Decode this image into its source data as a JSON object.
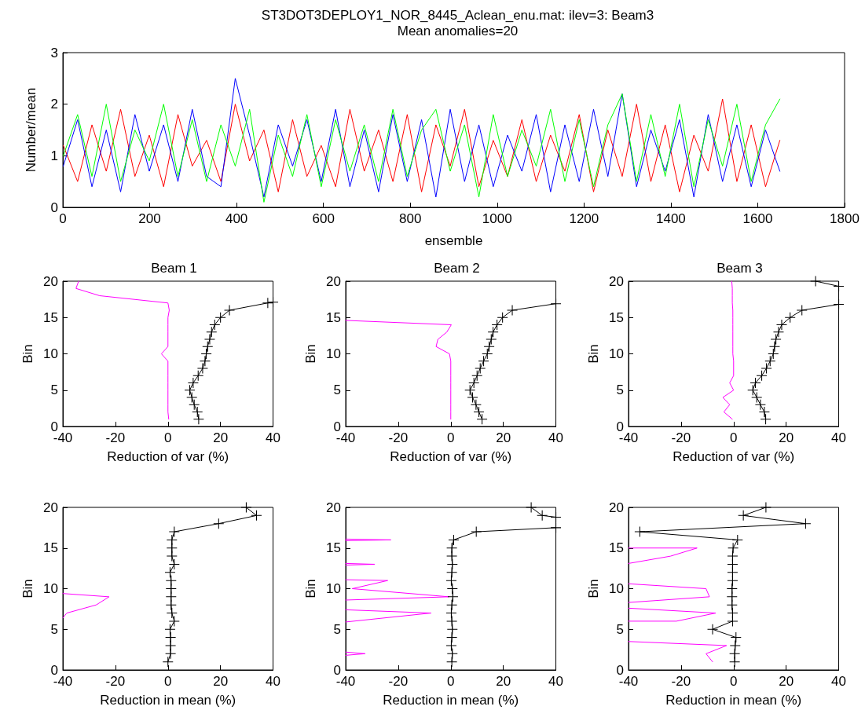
{
  "chart_data": [
    {
      "type": "line",
      "title": "ST3DOT3DEPLOY1_NOR_8445_Aclean_enu.mat: ilev=3: Beam3",
      "subtitle": "Mean anomalies=20",
      "xlabel": "ensemble",
      "ylabel": "Number/mean",
      "xlim": [
        0,
        1800
      ],
      "xticks": [
        0,
        200,
        400,
        600,
        800,
        1000,
        1200,
        1400,
        1600,
        1800
      ],
      "ylim": [
        0,
        3
      ],
      "yticks": [
        0,
        1,
        2,
        3
      ],
      "line_style": "solid",
      "marker": "none",
      "x": [
        1,
        34,
        67,
        100,
        133,
        166,
        199,
        232,
        265,
        298,
        331,
        364,
        397,
        430,
        463,
        496,
        529,
        562,
        595,
        628,
        661,
        694,
        727,
        760,
        793,
        826,
        859,
        892,
        925,
        958,
        991,
        1024,
        1057,
        1090,
        1123,
        1156,
        1189,
        1222,
        1255,
        1288,
        1321,
        1354,
        1387,
        1420,
        1453,
        1486,
        1519,
        1552,
        1585,
        1618,
        1651
      ],
      "series": [
        {
          "color": "#ff0000",
          "values": [
            1.2,
            0.5,
            1.6,
            0.7,
            1.9,
            0.6,
            1.4,
            0.4,
            1.8,
            0.8,
            1.3,
            0.5,
            2.0,
            0.9,
            1.5,
            0.3,
            1.7,
            0.6,
            1.2,
            0.4,
            1.9,
            0.7,
            1.5,
            0.5,
            1.8,
            0.3,
            1.6,
            0.8,
            1.9,
            0.4,
            1.3,
            0.6,
            1.7,
            0.5,
            1.4,
            0.7,
            1.8,
            0.3,
            1.5,
            0.6,
            2.0,
            0.5,
            1.6,
            0.3,
            1.4,
            0.7,
            2.1,
            0.5,
            1.6,
            0.4,
            1.3
          ]
        },
        {
          "color": "#0000ff",
          "values": [
            0.8,
            1.7,
            0.4,
            1.5,
            0.3,
            1.8,
            0.7,
            1.6,
            0.5,
            1.9,
            0.6,
            0.4,
            2.5,
            1.4,
            0.2,
            1.6,
            0.8,
            1.7,
            0.5,
            1.9,
            0.4,
            1.5,
            0.3,
            1.8,
            0.5,
            1.7,
            0.2,
            1.9,
            0.5,
            1.6,
            0.4,
            1.4,
            0.7,
            1.8,
            0.3,
            1.6,
            0.5,
            1.9,
            0.6,
            2.2,
            0.4,
            1.5,
            0.7,
            1.7,
            0.2,
            1.8,
            0.5,
            1.6,
            0.4,
            1.5,
            0.7
          ]
        },
        {
          "color": "#00ff00",
          "values": [
            1.0,
            1.8,
            0.6,
            2.0,
            0.5,
            1.5,
            0.9,
            2.0,
            0.6,
            1.7,
            0.5,
            1.6,
            0.8,
            1.9,
            0.1,
            1.4,
            0.6,
            1.8,
            0.4,
            1.7,
            0.7,
            1.6,
            0.5,
            1.9,
            0.6,
            1.5,
            1.9,
            0.7,
            1.6,
            0.2,
            1.8,
            0.6,
            1.5,
            0.8,
            1.9,
            0.5,
            1.7,
            0.4,
            1.6,
            2.2,
            0.5,
            1.8,
            0.6,
            2.0,
            0.4,
            1.7,
            0.8,
            2.0,
            0.5,
            1.6,
            2.1
          ]
        }
      ]
    },
    {
      "type": "line",
      "title": "Beam 1",
      "xlabel": "Reduction of var (%)",
      "ylabel": "Bin",
      "xlim": [
        -40,
        40
      ],
      "xticks": [
        -40,
        -20,
        0,
        20,
        40
      ],
      "ylim": [
        0,
        20
      ],
      "yticks": [
        0,
        5,
        10,
        15,
        20
      ],
      "line_style": "solid",
      "series": [
        {
          "color": "#ff00ff",
          "marker": "none",
          "x": [
            0.3,
            0,
            0,
            0,
            0,
            0,
            0,
            0,
            0,
            -2.5,
            0,
            0,
            0,
            0,
            0,
            0.5,
            0,
            -26,
            -35,
            -34
          ],
          "values": [
            1,
            2,
            3,
            4,
            5,
            6,
            7,
            8,
            9,
            10,
            11,
            12,
            13,
            14,
            15,
            16,
            17,
            18,
            19,
            20
          ]
        },
        {
          "color": "#000000",
          "marker": "cross",
          "x": [
            11.7,
            11.2,
            10,
            9.1,
            8.3,
            9.6,
            11.5,
            13.2,
            14.1,
            14.6,
            15.1,
            15.9,
            16.6,
            17.8,
            20,
            23.4,
            38,
            40
          ],
          "values": [
            1,
            2,
            3,
            4,
            5,
            6,
            7,
            8,
            9,
            10,
            11,
            12,
            13,
            14,
            15,
            16,
            17,
            17.1
          ]
        }
      ]
    },
    {
      "type": "line",
      "title": "Beam 2",
      "xlabel": "Reduction of var (%)",
      "ylabel": "Bin",
      "xlim": [
        -40,
        40
      ],
      "xticks": [
        -40,
        -20,
        0,
        20,
        40
      ],
      "ylim": [
        0,
        20
      ],
      "yticks": [
        0,
        5,
        10,
        15,
        20
      ],
      "line_style": "solid",
      "series": [
        {
          "color": "#ff00ff",
          "marker": "none",
          "x": [
            0,
            0,
            0,
            0,
            0,
            0,
            0,
            0,
            0,
            -0.5,
            -5.6,
            -4.9,
            -1.5,
            0.2,
            -40
          ],
          "values": [
            1,
            2,
            3,
            4,
            5,
            6,
            7,
            8,
            9,
            10,
            11,
            12,
            13,
            14,
            14.6
          ]
        },
        {
          "color": "#000000",
          "marker": "cross",
          "x": [
            11.9,
            10.7,
            9.6,
            8.3,
            7.3,
            8.8,
            10,
            11.2,
            12.5,
            13.9,
            14.6,
            15.4,
            16.1,
            17.6,
            19.7,
            23.4,
            40
          ],
          "values": [
            1,
            2,
            3,
            4,
            5,
            6,
            7,
            8,
            9,
            10,
            11,
            12,
            13,
            14,
            15,
            16,
            16.9
          ]
        }
      ]
    },
    {
      "type": "line",
      "title": "Beam 3",
      "xlabel": "Reduction of var (%)",
      "ylabel": "Bin",
      "xlim": [
        -40,
        40
      ],
      "xticks": [
        -40,
        -20,
        0,
        20,
        40
      ],
      "ylim": [
        0,
        20
      ],
      "yticks": [
        0,
        5,
        10,
        15,
        20
      ],
      "line_style": "solid",
      "series": [
        {
          "color": "#ff00ff",
          "marker": "none",
          "x": [
            -0.5,
            -3.7,
            -1.5,
            -4.1,
            0,
            -1.5,
            0,
            0,
            0,
            -0.3,
            -0.3,
            -0.3,
            -0.3,
            -0.3,
            -0.3,
            -0.3,
            -0.5,
            -0.5,
            -0.5,
            -0.7
          ],
          "values": [
            1,
            2,
            3,
            4,
            5,
            6,
            7,
            8,
            9,
            10,
            11,
            12,
            13,
            14,
            15,
            16,
            17,
            18,
            19,
            20
          ]
        },
        {
          "color": "#000000",
          "marker": "cross",
          "x": [
            12.2,
            11.7,
            10.2,
            8.8,
            7.3,
            8.3,
            10.7,
            12.5,
            13.9,
            15.1,
            15.6,
            16.1,
            17.1,
            18.3,
            21.5,
            26,
            40,
            null,
            40,
            31.2
          ],
          "values": [
            1,
            2,
            3,
            4,
            5,
            6,
            7,
            8,
            9,
            10,
            11,
            12,
            13,
            14,
            15,
            16,
            16.8,
            null,
            19.3,
            20
          ]
        }
      ]
    },
    {
      "type": "line",
      "xlabel": "Reduction in mean (%)",
      "ylabel": "Bin",
      "xlim": [
        -40,
        40
      ],
      "xticks": [
        -40,
        -20,
        0,
        20,
        40
      ],
      "ylim": [
        0,
        20
      ],
      "yticks": [
        0,
        5,
        10,
        15,
        20
      ],
      "line_style": "solid",
      "series": [
        {
          "color": "#ff00ff",
          "marker": "none",
          "x": [
            -40,
            -38.5,
            -27.3,
            -22.4,
            -40
          ],
          "values": [
            6.4,
            7,
            8,
            9,
            9.4
          ]
        },
        {
          "color": "#000000",
          "marker": "cross",
          "x": [
            0,
            1,
            1,
            1,
            0.8,
            2.4,
            1.5,
            1.2,
            1.2,
            1.2,
            1.2,
            0.8,
            2.4,
            1.5,
            1.5,
            1.5,
            2.4,
            19.3,
            33.7,
            29.8
          ],
          "values": [
            1,
            2,
            3,
            4,
            5,
            6,
            7,
            8,
            9,
            10,
            11,
            12,
            13,
            14,
            15,
            16,
            17,
            18,
            19,
            20
          ]
        }
      ]
    },
    {
      "type": "line",
      "xlabel": "Reduction in mean (%)",
      "ylabel": "Bin",
      "xlim": [
        -40,
        40
      ],
      "xticks": [
        -40,
        -20,
        0,
        20,
        40
      ],
      "ylim": [
        0,
        20
      ],
      "yticks": [
        0,
        5,
        10,
        15,
        20
      ],
      "line_style": "solid",
      "series": [
        {
          "color": "#ff00ff",
          "marker": "none",
          "x": [
            -40,
            -32.6,
            -40,
            null,
            -40,
            -7.5,
            -40,
            null,
            -40,
            -0.7,
            -37.5,
            -24,
            -40,
            null,
            -40,
            -29,
            -40,
            null,
            -40,
            -22.8,
            -40
          ],
          "values": [
            1.8,
            2,
            2.2,
            null,
            5.9,
            7,
            7.4,
            null,
            8.6,
            9,
            10,
            11,
            11.1,
            null,
            12.9,
            13,
            13.1,
            null,
            15.9,
            16,
            16.1
          ]
        },
        {
          "color": "#000000",
          "marker": "cross",
          "x": [
            0.4,
            0.6,
            0.2,
            0.4,
            0.6,
            0.4,
            0.2,
            0.4,
            0.8,
            0.6,
            0.2,
            0.4,
            0.6,
            0.4,
            0.4,
            1.1,
            9.7,
            40,
            null,
            40,
            34.8,
            30.6
          ],
          "values": [
            1,
            2,
            3,
            4,
            5,
            6,
            7,
            8,
            9,
            10,
            11,
            12,
            13,
            14,
            15,
            16,
            17,
            17.5,
            null,
            18.8,
            19,
            20
          ]
        }
      ]
    },
    {
      "type": "line",
      "xlabel": "Reduction in mean (%)",
      "ylabel": "Bin",
      "xlim": [
        -40,
        40
      ],
      "xticks": [
        -40,
        -20,
        0,
        20,
        40
      ],
      "ylim": [
        0,
        20
      ],
      "yticks": [
        0,
        5,
        10,
        15,
        20
      ],
      "line_style": "solid",
      "series": [
        {
          "color": "#ff00ff",
          "marker": "none",
          "x": [
            -8,
            -10.5,
            -2.7,
            -40,
            null,
            -40,
            -21.8,
            -6.8,
            -40,
            null,
            -40,
            -9.2,
            -10.5,
            -40,
            null,
            -40,
            -24,
            -13.9,
            -40
          ],
          "values": [
            1,
            2,
            3,
            3.5,
            null,
            6,
            6,
            7,
            7.6,
            null,
            8.3,
            9,
            10,
            10.6,
            null,
            13.1,
            14,
            15,
            15
          ]
        },
        {
          "color": "#000000",
          "marker": "cross",
          "x": [
            0.4,
            0.4,
            0.6,
            0.9,
            -8,
            -0.4,
            -0.4,
            -0.6,
            -0.6,
            -0.6,
            -0.4,
            -0.4,
            -0.4,
            -0.4,
            -0.2,
            1.5,
            -35.7,
            27.4,
            3.7,
            12.3
          ],
          "values": [
            1,
            2,
            3,
            4,
            5,
            6,
            7,
            8,
            9,
            10,
            11,
            12,
            13,
            14,
            15,
            16,
            17,
            18,
            19,
            20
          ]
        }
      ]
    }
  ]
}
